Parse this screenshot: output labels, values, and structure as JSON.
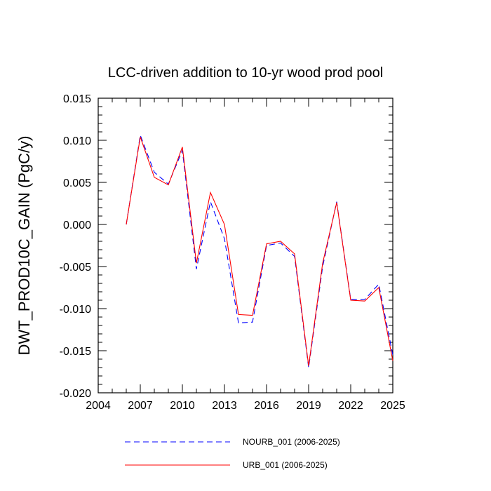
{
  "chart_data": {
    "type": "line",
    "title": "LCC-driven addition to 10-yr wood prod pool",
    "xlabel": "",
    "ylabel": "DWT_PROD10C_GAIN  (PgC/y)",
    "xlim": [
      2004,
      2025
    ],
    "ylim": [
      -0.02,
      0.015
    ],
    "xticks": [
      2004,
      2007,
      2010,
      2013,
      2016,
      2019,
      2022,
      2025
    ],
    "yticks": [
      -0.02,
      -0.015,
      -0.01,
      -0.005,
      0.0,
      0.005,
      0.01,
      0.015
    ],
    "ytick_labels": [
      "-0.020",
      "-0.015",
      "-0.010",
      "-0.005",
      "0.000",
      "0.005",
      "0.010",
      "0.015"
    ],
    "x": [
      2006,
      2007,
      2008,
      2009,
      2010,
      2011,
      2012,
      2013,
      2014,
      2015,
      2016,
      2017,
      2018,
      2019,
      2020,
      2021,
      2022,
      2023,
      2024,
      2025
    ],
    "series": [
      {
        "name": "NOURB_001 (2006-2025)",
        "color": "#0000ff",
        "dash": "dashed",
        "values": [
          0.0,
          0.0106,
          0.0062,
          0.0048,
          0.0088,
          -0.0053,
          0.0027,
          -0.0017,
          -0.0117,
          -0.0116,
          -0.0025,
          -0.0022,
          -0.0038,
          -0.017,
          -0.005,
          0.0027,
          -0.0089,
          -0.0089,
          -0.0071,
          -0.0155
        ]
      },
      {
        "name": "URB_001 (2006-2025)",
        "color": "#ff0000",
        "dash": "solid",
        "values": [
          0.0,
          0.0104,
          0.0056,
          0.0047,
          0.0092,
          -0.0046,
          0.0038,
          0.0,
          -0.0107,
          -0.0108,
          -0.0023,
          -0.002,
          -0.0035,
          -0.0168,
          -0.0046,
          0.0026,
          -0.009,
          -0.0091,
          -0.0075,
          -0.0162
        ]
      }
    ],
    "grid": false,
    "legend_position": "bottom"
  }
}
